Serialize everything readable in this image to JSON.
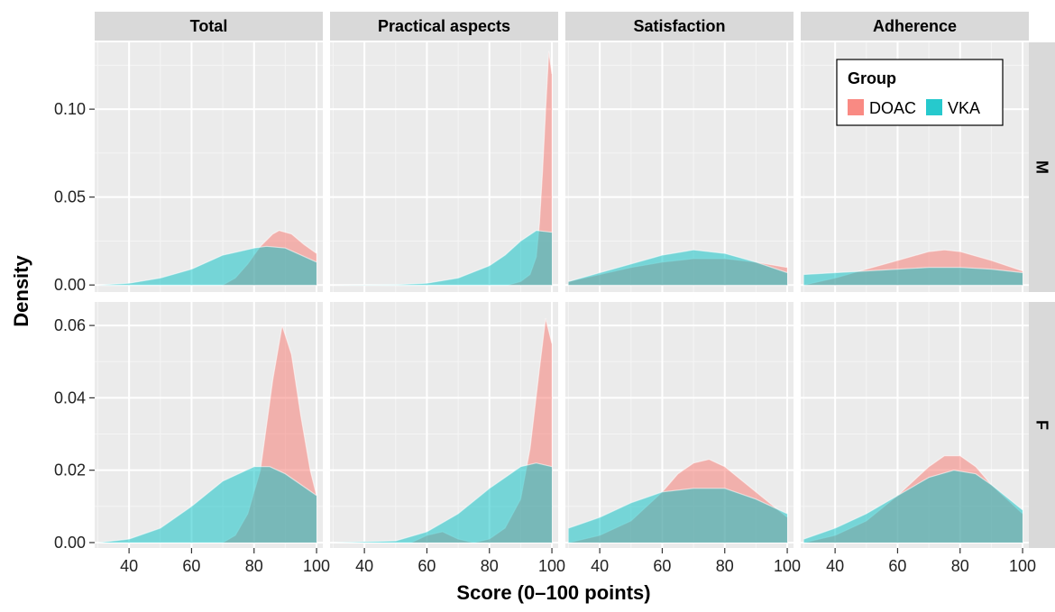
{
  "chart_data": {
    "type": "area",
    "xlabel": "Score (0–100 points)",
    "ylabel": "Density",
    "col_facets": [
      "Total",
      "Practical aspects",
      "Satisfaction",
      "Adherence"
    ],
    "row_facets": [
      "M",
      "F"
    ],
    "x_ticks": [
      40,
      60,
      80,
      100
    ],
    "xlim": [
      29,
      102
    ],
    "row_axes": [
      {
        "ylim": [
          -0.004,
          0.138
        ],
        "ticks": [
          0.0,
          0.05,
          0.1
        ],
        "tick_labels": [
          "0.00",
          "0.05",
          "0.10"
        ]
      },
      {
        "ylim": [
          -0.0015,
          0.0665
        ],
        "ticks": [
          0.0,
          0.02,
          0.04,
          0.06
        ],
        "tick_labels": [
          "0.00",
          "0.02",
          "0.04",
          "0.06"
        ]
      }
    ],
    "legend": {
      "title": "Group",
      "position": "top-right",
      "entries": [
        "DOAC",
        "VKA"
      ]
    },
    "series_colors": {
      "DOAC": "#f8766d",
      "VKA": "#00bfc4"
    },
    "panels": [
      {
        "row": "M",
        "col": "Total",
        "series": [
          {
            "name": "DOAC",
            "x": [
              70,
              74,
              78,
              82,
              86,
              88,
              92,
              96,
              100
            ],
            "y": [
              0,
              0.004,
              0.012,
              0.022,
              0.029,
              0.031,
              0.029,
              0.023,
              0.018
            ]
          },
          {
            "name": "VKA",
            "x": [
              30,
              40,
              50,
              60,
              70,
              80,
              84,
              90,
              100
            ],
            "y": [
              0,
              0.001,
              0.004,
              0.009,
              0.017,
              0.021,
              0.022,
              0.021,
              0.013
            ]
          }
        ]
      },
      {
        "row": "M",
        "col": "Practical aspects",
        "series": [
          {
            "name": "DOAC",
            "x": [
              86,
              90,
              93,
              95,
              96,
              97,
              98,
              99,
              100
            ],
            "y": [
              0,
              0.002,
              0.006,
              0.016,
              0.035,
              0.065,
              0.1,
              0.133,
              0.12
            ]
          },
          {
            "name": "VKA",
            "x": [
              30,
              50,
              60,
              70,
              80,
              85,
              90,
              95,
              100
            ],
            "y": [
              0,
              0.0002,
              0.001,
              0.004,
              0.011,
              0.017,
              0.025,
              0.031,
              0.03
            ]
          }
        ]
      },
      {
        "row": "M",
        "col": "Satisfaction",
        "series": [
          {
            "name": "DOAC",
            "x": [
              30,
              40,
              50,
              60,
              70,
              80,
              90,
              100
            ],
            "y": [
              0.002,
              0.006,
              0.01,
              0.013,
              0.015,
              0.015,
              0.013,
              0.01
            ]
          },
          {
            "name": "VKA",
            "x": [
              30,
              40,
              50,
              60,
              70,
              80,
              90,
              100
            ],
            "y": [
              0.002,
              0.007,
              0.012,
              0.017,
              0.02,
              0.018,
              0.013,
              0.007
            ]
          }
        ]
      },
      {
        "row": "M",
        "col": "Adherence",
        "series": [
          {
            "name": "DOAC",
            "x": [
              30,
              40,
              50,
              60,
              70,
              75,
              80,
              90,
              100
            ],
            "y": [
              0,
              0.004,
              0.009,
              0.014,
              0.019,
              0.02,
              0.019,
              0.014,
              0.008
            ]
          },
          {
            "name": "VKA",
            "x": [
              30,
              40,
              50,
              60,
              70,
              80,
              90,
              100
            ],
            "y": [
              0.006,
              0.007,
              0.008,
              0.009,
              0.01,
              0.01,
              0.009,
              0.007
            ]
          }
        ]
      },
      {
        "row": "F",
        "col": "Total",
        "series": [
          {
            "name": "DOAC",
            "x": [
              70,
              74,
              78,
              82,
              86,
              89,
              92,
              95,
              98,
              100
            ],
            "y": [
              0,
              0.002,
              0.008,
              0.02,
              0.045,
              0.06,
              0.052,
              0.035,
              0.02,
              0.013
            ]
          },
          {
            "name": "VKA",
            "x": [
              30,
              40,
              50,
              60,
              70,
              80,
              85,
              90,
              100
            ],
            "y": [
              0,
              0.001,
              0.004,
              0.01,
              0.017,
              0.021,
              0.021,
              0.019,
              0.013
            ]
          }
        ]
      },
      {
        "row": "F",
        "col": "Practical aspects",
        "series": [
          {
            "name": "DOAC",
            "x": [
              55,
              60,
              65,
              70,
              75,
              80,
              85,
              90,
              93,
              96,
              98,
              100
            ],
            "y": [
              0,
              0.002,
              0.003,
              0.001,
              0,
              0.001,
              0.004,
              0.012,
              0.026,
              0.048,
              0.062,
              0.055
            ]
          },
          {
            "name": "VKA",
            "x": [
              30,
              50,
              60,
              70,
              80,
              90,
              95,
              100
            ],
            "y": [
              0,
              0.0005,
              0.003,
              0.008,
              0.015,
              0.021,
              0.022,
              0.021
            ]
          }
        ]
      },
      {
        "row": "F",
        "col": "Satisfaction",
        "series": [
          {
            "name": "DOAC",
            "x": [
              30,
              40,
              50,
              60,
              65,
              70,
              75,
              80,
              90,
              100
            ],
            "y": [
              0,
              0.002,
              0.006,
              0.014,
              0.019,
              0.022,
              0.023,
              0.021,
              0.014,
              0.007
            ]
          },
          {
            "name": "VKA",
            "x": [
              30,
              40,
              50,
              60,
              70,
              80,
              90,
              100
            ],
            "y": [
              0.004,
              0.007,
              0.011,
              0.014,
              0.015,
              0.015,
              0.012,
              0.008
            ]
          }
        ]
      },
      {
        "row": "F",
        "col": "Adherence",
        "series": [
          {
            "name": "DOAC",
            "x": [
              30,
              40,
              50,
              60,
              70,
              75,
              80,
              85,
              90,
              100
            ],
            "y": [
              0,
              0.002,
              0.006,
              0.013,
              0.021,
              0.024,
              0.024,
              0.021,
              0.016,
              0.008
            ]
          },
          {
            "name": "VKA",
            "x": [
              30,
              40,
              50,
              60,
              70,
              78,
              85,
              90,
              100
            ],
            "y": [
              0.001,
              0.004,
              0.008,
              0.013,
              0.018,
              0.02,
              0.019,
              0.016,
              0.009
            ]
          }
        ]
      }
    ]
  }
}
